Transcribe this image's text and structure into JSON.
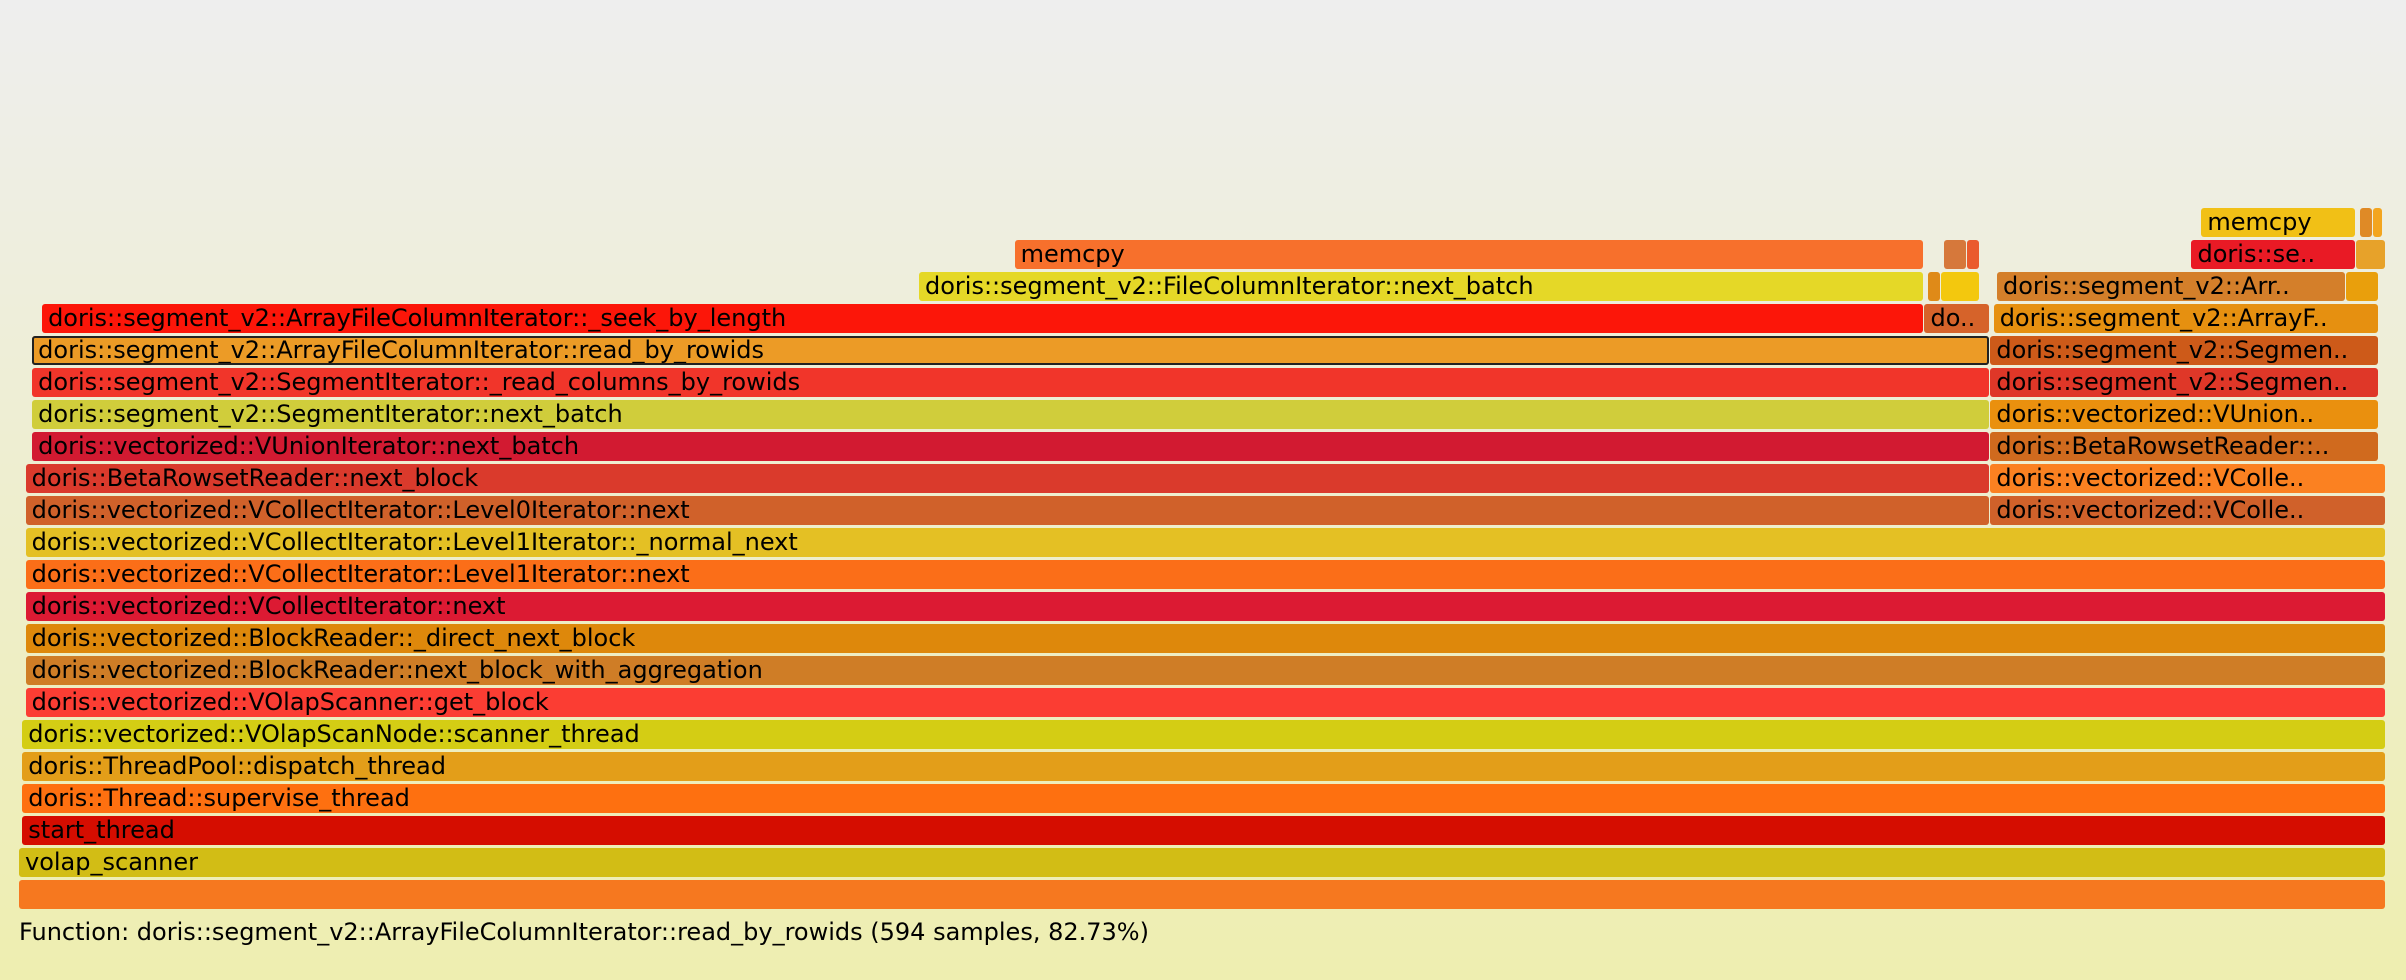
{
  "details": "Function: doris::segment_v2::ArrayFileColumnIterator::read_by_rowids (594 samples, 82.73%)",
  "colors": {
    "selected_outline": "#222222",
    "background_top": "#eeeeee",
    "background_bottom": "#eeeeb0"
  },
  "chart_data": {
    "type": "flamegraph",
    "total_samples": 718,
    "selected": "doris::segment_v2::ArrayFileColumnIterator::read_by_rowids",
    "frames": [
      {
        "name": "",
        "label": "",
        "depth": 0,
        "start": 0,
        "samples": 718,
        "color": "#f6781f"
      },
      {
        "name": "volap_scanner",
        "label": "volap_scanner",
        "depth": 1,
        "start": 0,
        "samples": 718,
        "color": "#d2bd15"
      },
      {
        "name": "start_thread",
        "label": "start_thread",
        "depth": 2,
        "start": 1,
        "samples": 717,
        "color": "#d50d00"
      },
      {
        "name": "doris::Thread::supervise_thread",
        "label": "doris::Thread::supervise_thread",
        "depth": 3,
        "start": 1,
        "samples": 717,
        "color": "#fe7010"
      },
      {
        "name": "doris::ThreadPool::dispatch_thread",
        "label": "doris::ThreadPool::dispatch_thread",
        "depth": 4,
        "start": 1,
        "samples": 717,
        "color": "#e39e19"
      },
      {
        "name": "doris::vectorized::VOlapScanNode::scanner_thread",
        "label": "doris::vectorized::VOlapScanNode::scanner_thread",
        "depth": 5,
        "start": 1,
        "samples": 717,
        "color": "#d4cd14"
      },
      {
        "name": "doris::vectorized::VOlapScanner::get_block",
        "label": "doris::vectorized::VOlapScanner::get_block",
        "depth": 6,
        "start": 2,
        "samples": 716,
        "color": "#fb3d33"
      },
      {
        "name": "doris::vectorized::BlockReader::next_block_with_aggregation",
        "label": "doris::vectorized::BlockReader::next_block_with_aggregation",
        "depth": 7,
        "start": 2,
        "samples": 716,
        "color": "#cf7d26"
      },
      {
        "name": "doris::vectorized::BlockReader::_direct_next_block",
        "label": "doris::vectorized::BlockReader::_direct_next_block",
        "depth": 8,
        "start": 2,
        "samples": 716,
        "color": "#de880b"
      },
      {
        "name": "doris::vectorized::VCollectIterator::next",
        "label": "doris::vectorized::VCollectIterator::next",
        "depth": 9,
        "start": 2,
        "samples": 716,
        "color": "#dc1a33"
      },
      {
        "name": "doris::vectorized::VCollectIterator::Level1Iterator::next",
        "label": "doris::vectorized::VCollectIterator::Level1Iterator::next",
        "depth": 10,
        "start": 2,
        "samples": 716,
        "color": "#fb6e18"
      },
      {
        "name": "doris::vectorized::VCollectIterator::Level1Iterator::_normal_next",
        "label": "doris::vectorized::VCollectIterator::Level1Iterator::_normal_next",
        "depth": 11,
        "start": 2,
        "samples": 716,
        "color": "#e4c024"
      },
      {
        "name": "doris::vectorized::VCollectIterator::Level0Iterator::next",
        "label": "doris::vectorized::VCollectIterator::Level0Iterator::next",
        "depth": 12,
        "start": 2,
        "samples": 596,
        "color": "#d0612a"
      },
      {
        "name": "doris::vectorized::VCollectIterator::Level0Iterator::next",
        "label": "doris::vectorized::VColle..",
        "depth": 12,
        "start": 598,
        "samples": 120,
        "color": "#d0612a"
      },
      {
        "name": "doris::BetaRowsetReader::next_block",
        "label": "doris::BetaRowsetReader::next_block",
        "depth": 13,
        "start": 2,
        "samples": 596,
        "color": "#da3a2c"
      },
      {
        "name": "doris::vectorized::VCollectIterator::Level1Iterator::next",
        "label": "doris::vectorized::VColle..",
        "depth": 13,
        "start": 598,
        "samples": 120,
        "color": "#fb8121"
      },
      {
        "name": "doris::vectorized::VUnionIterator::next_batch",
        "label": "doris::vectorized::VUnionIterator::next_batch",
        "depth": 14,
        "start": 4,
        "samples": 594,
        "color": "#d21a31"
      },
      {
        "name": "doris::BetaRowsetReader::next_block",
        "label": "doris::BetaRowsetReader::..",
        "depth": 14,
        "start": 598,
        "samples": 118,
        "color": "#d06a1e"
      },
      {
        "name": "doris::segment_v2::SegmentIterator::next_batch",
        "label": "doris::segment_v2::SegmentIterator::next_batch",
        "depth": 15,
        "start": 4,
        "samples": 594,
        "color": "#d0cd3b"
      },
      {
        "name": "doris::vectorized::VUnionIterator::next_batch",
        "label": "doris::vectorized::VUnion..",
        "depth": 15,
        "start": 598,
        "samples": 118,
        "color": "#ea900e"
      },
      {
        "name": "doris::segment_v2::SegmentIterator::_read_columns_by_rowids",
        "label": "doris::segment_v2::SegmentIterator::_read_columns_by_rowids",
        "depth": 16,
        "start": 4,
        "samples": 594,
        "color": "#f1352a"
      },
      {
        "name": "doris::segment_v2::SegmentIterator::next_batch",
        "label": "doris::segment_v2::Segmen..",
        "depth": 16,
        "start": 598,
        "samples": 118,
        "color": "#df3728"
      },
      {
        "name": "doris::segment_v2::ArrayFileColumnIterator::read_by_rowids",
        "label": "doris::segment_v2::ArrayFileColumnIterator::read_by_rowids",
        "depth": 17,
        "start": 4,
        "samples": 594,
        "color": "#ec9b26"
      },
      {
        "name": "doris::segment_v2::SegmentIterator::_read_columns_by_rowids",
        "label": "doris::segment_v2::Segmen..",
        "depth": 17,
        "start": 598,
        "samples": 118,
        "color": "#cd5a19"
      },
      {
        "name": "doris::segment_v2::ArrayFileColumnIterator::_seek_by_length",
        "label": "doris::segment_v2::ArrayFileColumnIterator::_seek_by_length",
        "depth": 18,
        "start": 7,
        "samples": 571,
        "color": "#fc1609"
      },
      {
        "name": "",
        "label": "do..",
        "depth": 18,
        "start": 578,
        "samples": 20,
        "color": "#d6632a"
      },
      {
        "name": "doris::segment_v2::ArrayFileColumnIterator::read_by_rowids",
        "label": "doris::segment_v2::ArrayF..",
        "depth": 18,
        "start": 599,
        "samples": 117,
        "color": "#e69010"
      },
      {
        "name": "doris::segment_v2::FileColumnIterator::next_batch",
        "label": "doris::segment_v2::FileColumnIterator::next_batch",
        "depth": 19,
        "start": 273,
        "samples": 305,
        "color": "#e5d827"
      },
      {
        "name": "",
        "label": "",
        "depth": 19,
        "start": 579,
        "samples": 4,
        "color": "#df8a18"
      },
      {
        "name": "",
        "label": "",
        "depth": 19,
        "start": 583,
        "samples": 12,
        "color": "#f3c80e"
      },
      {
        "name": "doris::segment_v2::ArrayFileColumnIterator::_seek_by_length",
        "label": "doris::segment_v2::Arr..",
        "depth": 19,
        "start": 600,
        "samples": 106,
        "color": "#d47f2a"
      },
      {
        "name": "",
        "label": "",
        "depth": 19,
        "start": 706,
        "samples": 10,
        "color": "#e99f0c"
      },
      {
        "name": "memcpy",
        "label": "memcpy",
        "depth": 20,
        "start": 302,
        "samples": 276,
        "color": "#f7702c"
      },
      {
        "name": "",
        "label": "",
        "depth": 20,
        "start": 584,
        "samples": 7,
        "color": "#d6783b"
      },
      {
        "name": "",
        "label": "",
        "depth": 20,
        "start": 591,
        "samples": 4,
        "color": "#ea5b2d"
      },
      {
        "name": "doris::segment_v2::FileColumnIterator::next_batch",
        "label": "doris::se..",
        "depth": 20,
        "start": 659,
        "samples": 50,
        "color": "#e91a25"
      },
      {
        "name": "",
        "label": "",
        "depth": 20,
        "start": 709,
        "samples": 9,
        "color": "#e7a22a"
      },
      {
        "name": "memcpy",
        "label": "memcpy",
        "depth": 21,
        "start": 662,
        "samples": 47,
        "color": "#f1c016"
      },
      {
        "name": "",
        "label": "",
        "depth": 21,
        "start": 710,
        "samples": 4,
        "color": "#df8a26"
      },
      {
        "name": "",
        "label": "",
        "depth": 21,
        "start": 714,
        "samples": 3,
        "color": "#f3a51f"
      }
    ]
  }
}
